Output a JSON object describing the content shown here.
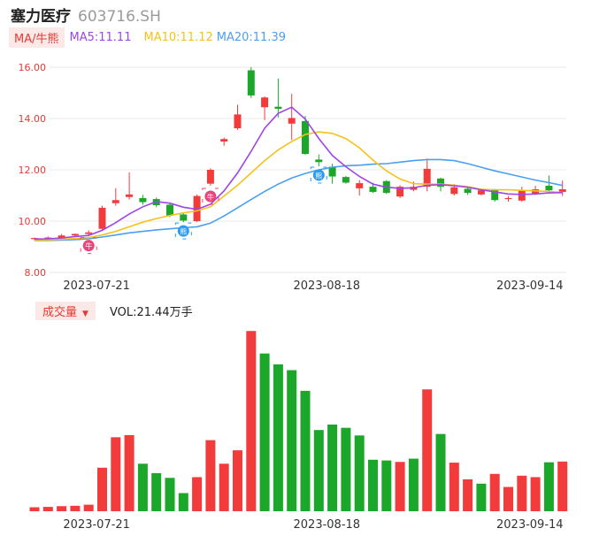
{
  "header": {
    "name": "塞力医疗",
    "code": "603716.SH"
  },
  "ma_legend": {
    "tag": "MA/牛熊",
    "ma5": "MA5:11.11",
    "ma10": "MA10:11.12",
    "ma20": "MA20:11.39"
  },
  "volume_legend": {
    "tag": "成交量",
    "text": "VOL:21.44万手"
  },
  "colors": {
    "up": "#f23b3b",
    "down": "#1ba82a",
    "ma5": "#a044e8",
    "ma10": "#f5c21b",
    "ma20": "#4a9ff0",
    "axis_label": "#e53935",
    "signal_buy": "#e8457a",
    "signal_sell": "#2b9af3"
  },
  "chart_data": [
    {
      "type": "candlestick",
      "title": "",
      "ylim": [
        8.0,
        16.0
      ],
      "yticks": [
        "8.00",
        "10.00",
        "12.00",
        "14.00",
        "16.00"
      ],
      "xticks": [
        "2023-07-21",
        "2023-08-18",
        "2023-09-14"
      ],
      "xtick_index": [
        4,
        21,
        36
      ],
      "candles": [
        {
          "o": 9.3,
          "h": 9.36,
          "l": 9.26,
          "c": 9.34
        },
        {
          "o": 9.34,
          "h": 9.4,
          "l": 9.3,
          "c": 9.36
        },
        {
          "o": 9.36,
          "h": 9.5,
          "l": 9.33,
          "c": 9.44
        },
        {
          "o": 9.44,
          "h": 9.52,
          "l": 9.4,
          "c": 9.5
        },
        {
          "o": 9.5,
          "h": 9.64,
          "l": 9.46,
          "c": 9.56
        },
        {
          "o": 9.7,
          "h": 10.6,
          "l": 9.64,
          "c": 10.52
        },
        {
          "o": 10.7,
          "h": 11.28,
          "l": 10.6,
          "c": 10.82
        },
        {
          "o": 10.94,
          "h": 11.9,
          "l": 10.84,
          "c": 11.04
        },
        {
          "o": 10.9,
          "h": 11.02,
          "l": 10.64,
          "c": 10.74
        },
        {
          "o": 10.86,
          "h": 10.92,
          "l": 10.54,
          "c": 10.62
        },
        {
          "o": 10.64,
          "h": 10.7,
          "l": 10.16,
          "c": 10.22
        },
        {
          "o": 10.26,
          "h": 10.32,
          "l": 9.96,
          "c": 10.02
        },
        {
          "o": 10.0,
          "h": 11.04,
          "l": 9.96,
          "c": 10.98
        },
        {
          "o": 11.46,
          "h": 12.06,
          "l": 11.38,
          "c": 12.0
        },
        {
          "o": 13.1,
          "h": 13.26,
          "l": 12.94,
          "c": 13.2
        },
        {
          "o": 13.62,
          "h": 14.54,
          "l": 13.56,
          "c": 14.16
        },
        {
          "o": 15.88,
          "h": 16.0,
          "l": 14.8,
          "c": 14.9
        },
        {
          "o": 14.44,
          "h": 14.86,
          "l": 13.94,
          "c": 14.82
        },
        {
          "o": 14.46,
          "h": 15.56,
          "l": 14.04,
          "c": 14.38
        },
        {
          "o": 13.8,
          "h": 14.96,
          "l": 13.16,
          "c": 14.02
        },
        {
          "o": 13.9,
          "h": 14.1,
          "l": 12.58,
          "c": 12.62
        },
        {
          "o": 12.4,
          "h": 12.6,
          "l": 12.14,
          "c": 12.3
        },
        {
          "o": 12.12,
          "h": 12.24,
          "l": 11.46,
          "c": 11.74
        },
        {
          "o": 11.72,
          "h": 11.76,
          "l": 11.46,
          "c": 11.5
        },
        {
          "o": 11.28,
          "h": 11.6,
          "l": 11.0,
          "c": 11.48
        },
        {
          "o": 11.34,
          "h": 11.5,
          "l": 11.1,
          "c": 11.14
        },
        {
          "o": 11.56,
          "h": 11.6,
          "l": 11.06,
          "c": 11.1
        },
        {
          "o": 10.96,
          "h": 11.4,
          "l": 10.9,
          "c": 11.34
        },
        {
          "o": 11.22,
          "h": 11.54,
          "l": 11.16,
          "c": 11.34
        },
        {
          "o": 11.34,
          "h": 12.44,
          "l": 11.16,
          "c": 12.04
        },
        {
          "o": 11.66,
          "h": 11.7,
          "l": 11.16,
          "c": 11.34
        },
        {
          "o": 11.06,
          "h": 11.44,
          "l": 11.0,
          "c": 11.32
        },
        {
          "o": 11.26,
          "h": 11.3,
          "l": 11.02,
          "c": 11.1
        },
        {
          "o": 11.04,
          "h": 11.26,
          "l": 11.0,
          "c": 11.2
        },
        {
          "o": 11.22,
          "h": 11.26,
          "l": 10.76,
          "c": 10.82
        },
        {
          "o": 10.86,
          "h": 10.98,
          "l": 10.76,
          "c": 10.9
        },
        {
          "o": 10.8,
          "h": 11.34,
          "l": 10.76,
          "c": 11.22
        },
        {
          "o": 11.06,
          "h": 11.38,
          "l": 11.02,
          "c": 11.24
        },
        {
          "o": 11.38,
          "h": 11.78,
          "l": 11.14,
          "c": 11.2
        },
        {
          "o": 11.14,
          "h": 11.58,
          "l": 10.98,
          "c": 11.24
        }
      ],
      "ma5": [
        9.3,
        9.31,
        9.34,
        9.4,
        9.44,
        9.64,
        9.94,
        10.28,
        10.56,
        10.76,
        10.7,
        10.54,
        10.46,
        10.66,
        11.18,
        11.88,
        12.72,
        13.62,
        14.2,
        14.44,
        13.98,
        13.22,
        12.56,
        12.12,
        11.74,
        11.44,
        11.32,
        11.28,
        11.3,
        11.4,
        11.42,
        11.38,
        11.32,
        11.22,
        11.14,
        11.06,
        11.04,
        11.06,
        11.1,
        11.11
      ],
      "ma10": [
        9.26,
        9.27,
        9.29,
        9.32,
        9.36,
        9.46,
        9.6,
        9.78,
        9.96,
        10.1,
        10.22,
        10.32,
        10.4,
        10.56,
        10.98,
        11.4,
        11.88,
        12.36,
        12.78,
        13.1,
        13.38,
        13.48,
        13.42,
        13.22,
        12.86,
        12.38,
        11.96,
        11.64,
        11.46,
        11.44,
        11.44,
        11.4,
        11.34,
        11.24,
        11.22,
        11.22,
        11.2,
        11.18,
        11.15,
        11.12
      ],
      "ma20": [
        9.24,
        9.25,
        9.26,
        9.28,
        9.31,
        9.38,
        9.46,
        9.54,
        9.6,
        9.66,
        9.7,
        9.74,
        9.78,
        9.92,
        10.2,
        10.52,
        10.84,
        11.16,
        11.44,
        11.68,
        11.86,
        12.0,
        12.1,
        12.16,
        12.18,
        12.22,
        12.24,
        12.3,
        12.36,
        12.4,
        12.4,
        12.36,
        12.24,
        12.1,
        11.96,
        11.84,
        11.72,
        11.6,
        11.5,
        11.39
      ],
      "signals": [
        {
          "index": 4,
          "kind": "buy",
          "text": "牛"
        },
        {
          "index": 11,
          "kind": "sell",
          "text": "熊"
        },
        {
          "index": 13,
          "kind": "buy",
          "text": "牛"
        },
        {
          "index": 21,
          "kind": "sell",
          "text": "熊"
        }
      ]
    },
    {
      "type": "bar",
      "title": "成交量",
      "ylim": [
        0,
        1
      ],
      "xticks": [
        "2023-07-21",
        "2023-08-18",
        "2023-09-14"
      ],
      "values": [
        0.022,
        0.024,
        0.028,
        0.03,
        0.036,
        0.24,
        0.408,
        0.42,
        0.262,
        0.21,
        0.184,
        0.1,
        0.188,
        0.392,
        0.262,
        0.336,
        0.994,
        0.87,
        0.81,
        0.778,
        0.664,
        0.448,
        0.478,
        0.46,
        0.418,
        0.284,
        0.28,
        0.272,
        0.29,
        0.672,
        0.426,
        0.268,
        0.176,
        0.152,
        0.206,
        0.134,
        0.196,
        0.188,
        0.27,
        0.274
      ],
      "up": [
        1,
        1,
        1,
        1,
        1,
        1,
        1,
        1,
        0,
        0,
        0,
        0,
        1,
        1,
        1,
        1,
        1,
        0,
        0,
        0,
        0,
        0,
        0,
        0,
        0,
        0,
        0,
        1,
        0,
        1,
        0,
        1,
        1,
        0,
        1,
        1,
        1,
        1,
        0,
        1
      ]
    }
  ]
}
